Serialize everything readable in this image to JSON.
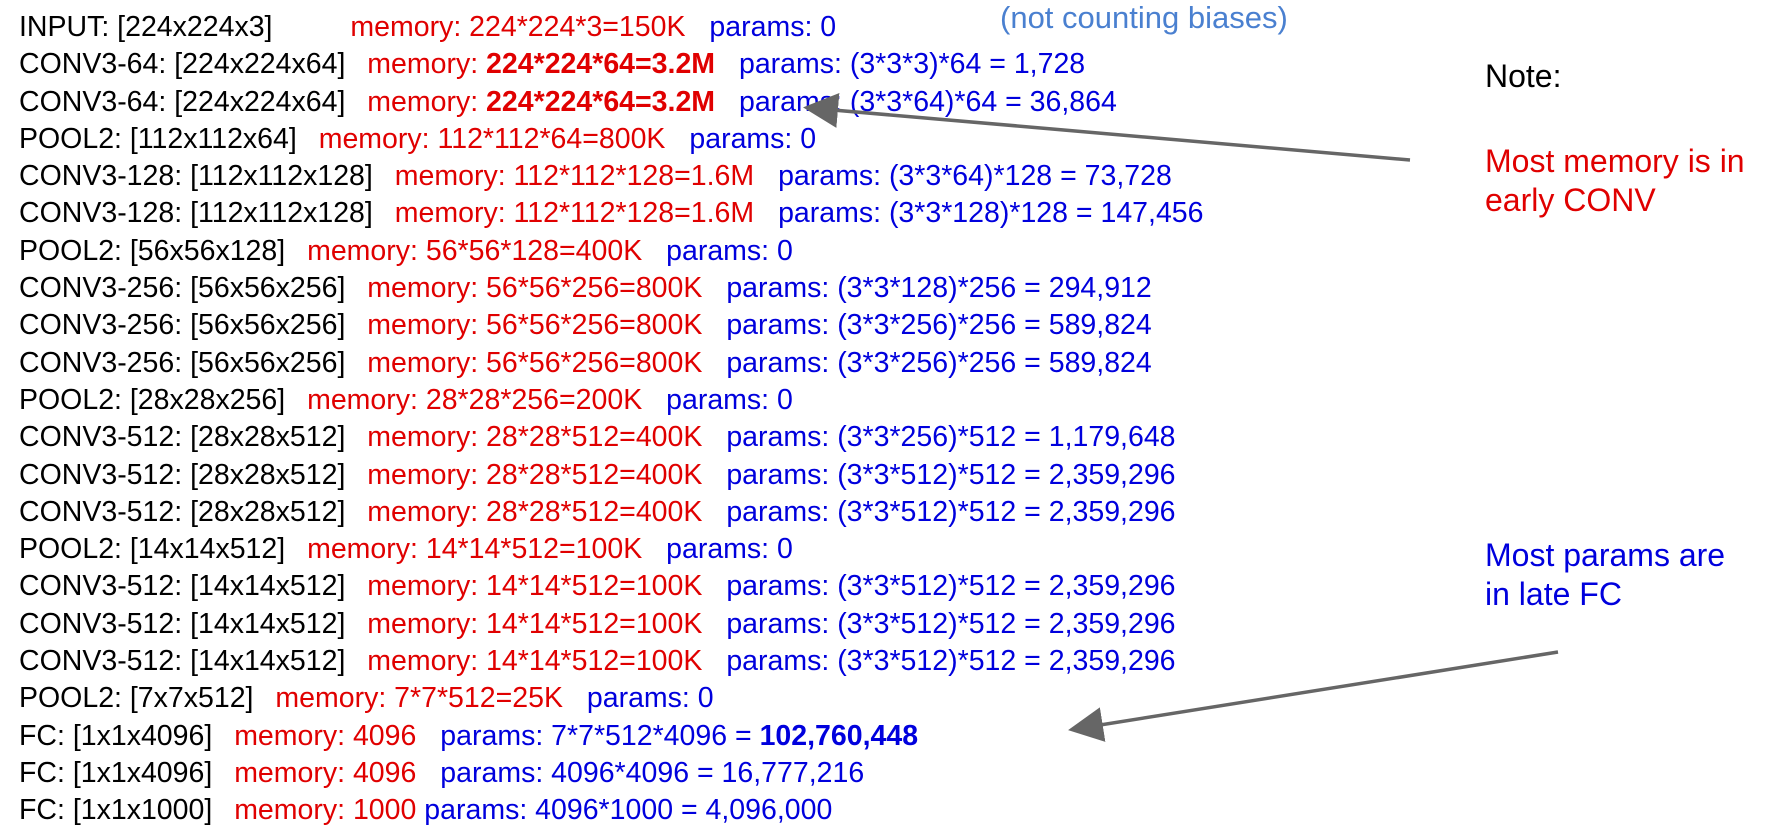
{
  "annotations": {
    "biases": "(not counting biases)",
    "note_label": "Note:",
    "memory_note": [
      "Most memory is in",
      "early CONV"
    ],
    "params_note": [
      "Most params are",
      "in late FC"
    ]
  },
  "colors": {
    "layer": "#000000",
    "memory": "#e00000",
    "params": "#0000dd",
    "biases_note": "#4a80d0",
    "arrow": "#666666"
  },
  "layers": [
    {
      "layer": "INPUT: [224x224x3]",
      "memory_label": "memory:",
      "memory_value": "224*224*3=150K",
      "params_label": "params:",
      "params_value": "0"
    },
    {
      "layer": "CONV3-64: [224x224x64]",
      "memory_label": "memory:",
      "memory_value": "224*224*64=3.2M",
      "params_label": "params:",
      "params_value": "(3*3*3)*64 = 1,728"
    },
    {
      "layer": "CONV3-64: [224x224x64]",
      "memory_label": "memory:",
      "memory_value": "224*224*64=3.2M",
      "params_label": "params:",
      "params_value": "(3*3*64)*64 = 36,864"
    },
    {
      "layer": "POOL2: [112x112x64]",
      "memory_label": "memory:",
      "memory_value": "112*112*64=800K",
      "params_label": "params:",
      "params_value": "0"
    },
    {
      "layer": "CONV3-128: [112x112x128]",
      "memory_label": "memory:",
      "memory_value": "112*112*128=1.6M",
      "params_label": "params:",
      "params_value": "(3*3*64)*128 = 73,728"
    },
    {
      "layer": "CONV3-128: [112x112x128]",
      "memory_label": "memory:",
      "memory_value": "112*112*128=1.6M",
      "params_label": "params:",
      "params_value": "(3*3*128)*128 = 147,456"
    },
    {
      "layer": "POOL2: [56x56x128]",
      "memory_label": "memory:",
      "memory_value": "56*56*128=400K",
      "params_label": "params:",
      "params_value": "0"
    },
    {
      "layer": "CONV3-256: [56x56x256]",
      "memory_label": "memory:",
      "memory_value": "56*56*256=800K",
      "params_label": "params:",
      "params_value": "(3*3*128)*256 = 294,912"
    },
    {
      "layer": "CONV3-256: [56x56x256]",
      "memory_label": "memory:",
      "memory_value": "56*56*256=800K",
      "params_label": "params:",
      "params_value": "(3*3*256)*256 = 589,824"
    },
    {
      "layer": "CONV3-256: [56x56x256]",
      "memory_label": "memory:",
      "memory_value": "56*56*256=800K",
      "params_label": "params:",
      "params_value": "(3*3*256)*256 = 589,824"
    },
    {
      "layer": "POOL2: [28x28x256]",
      "memory_label": "memory:",
      "memory_value": "28*28*256=200K",
      "params_label": "params:",
      "params_value": "0"
    },
    {
      "layer": "CONV3-512: [28x28x512]",
      "memory_label": "memory:",
      "memory_value": "28*28*512=400K",
      "params_label": "params:",
      "params_value": "(3*3*256)*512 = 1,179,648"
    },
    {
      "layer": "CONV3-512: [28x28x512]",
      "memory_label": "memory:",
      "memory_value": "28*28*512=400K",
      "params_label": "params:",
      "params_value": "(3*3*512)*512 = 2,359,296"
    },
    {
      "layer": "CONV3-512: [28x28x512]",
      "memory_label": "memory:",
      "memory_value": "28*28*512=400K",
      "params_label": "params:",
      "params_value": "(3*3*512)*512 = 2,359,296"
    },
    {
      "layer": "POOL2: [14x14x512]",
      "memory_label": "memory:",
      "memory_value": "14*14*512=100K",
      "params_label": "params:",
      "params_value": "0"
    },
    {
      "layer": "CONV3-512: [14x14x512]",
      "memory_label": "memory:",
      "memory_value": "14*14*512=100K",
      "params_label": "params:",
      "params_value": "(3*3*512)*512 = 2,359,296"
    },
    {
      "layer": "CONV3-512: [14x14x512]",
      "memory_label": "memory:",
      "memory_value": "14*14*512=100K",
      "params_label": "params:",
      "params_value": "(3*3*512)*512 = 2,359,296"
    },
    {
      "layer": "CONV3-512: [14x14x512]",
      "memory_label": "memory:",
      "memory_value": "14*14*512=100K",
      "params_label": "params:",
      "params_value": "(3*3*512)*512 = 2,359,296"
    },
    {
      "layer": "POOL2: [7x7x512]",
      "memory_label": "memory:",
      "memory_value": "7*7*512=25K",
      "params_label": "params:",
      "params_value": "0"
    },
    {
      "layer": "FC: [1x1x4096]",
      "memory_label": "memory:",
      "memory_value": "4096",
      "params_label": "params:",
      "params_value": "7*7*512*4096 = ",
      "params_value_bold": "102,760,448"
    },
    {
      "layer": "FC: [1x1x4096]",
      "memory_label": "memory:",
      "memory_value": "4096",
      "params_label": "params:",
      "params_value": "4096*4096 = 16,777,216"
    },
    {
      "layer": "FC: [1x1x1000]",
      "memory_label": "memory:",
      "memory_value": "1000",
      "params_label": "params:",
      "params_value": "4096*1000 = 4,096,000"
    }
  ]
}
